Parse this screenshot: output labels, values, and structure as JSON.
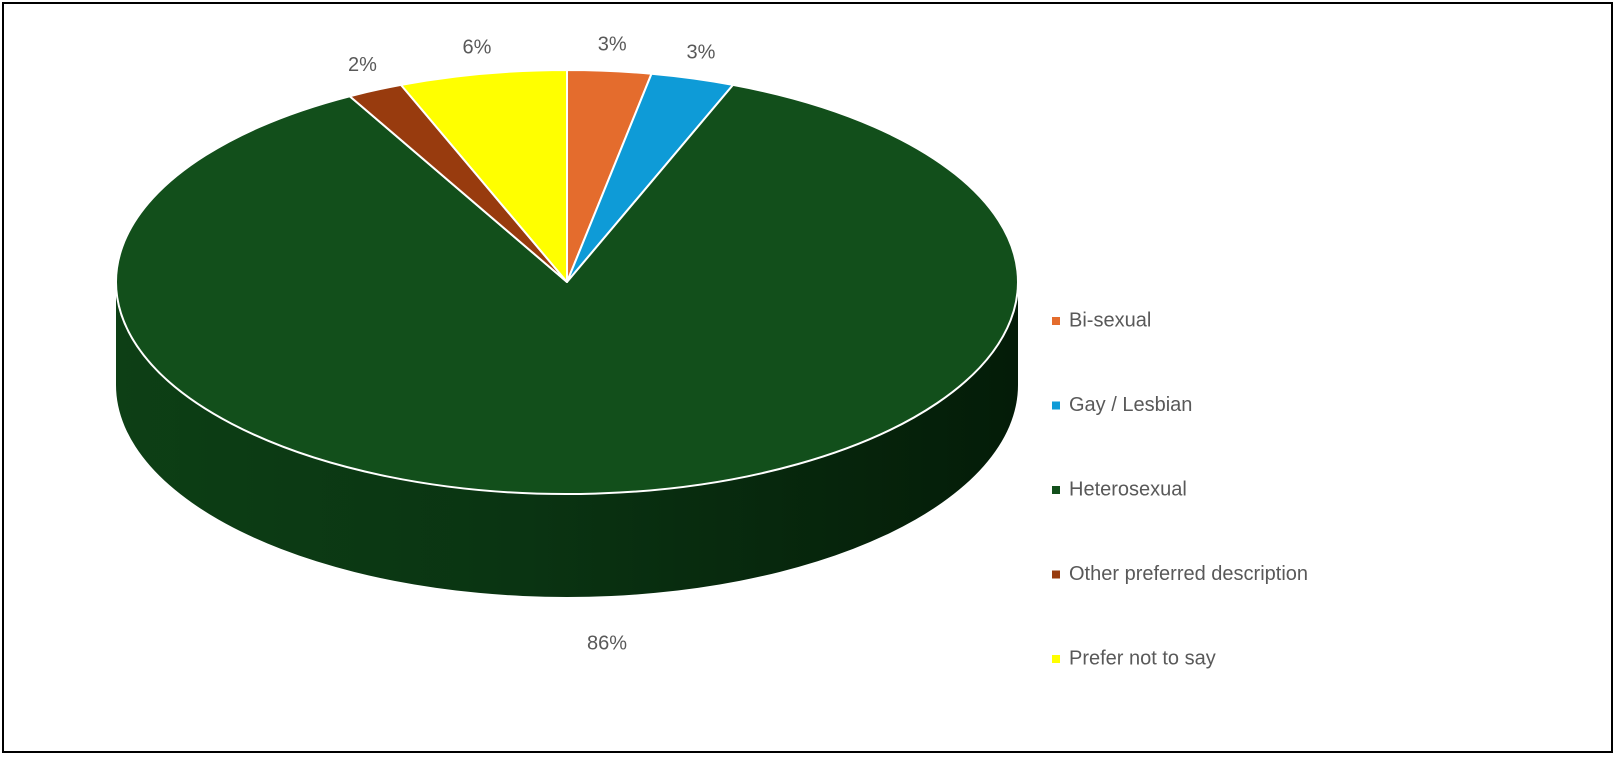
{
  "chart_data": {
    "type": "pie",
    "style": "3d",
    "categories": [
      "Bi-sexual",
      "Gay / Lesbian",
      "Heterosexual",
      "Other preferred description",
      "Prefer not to say"
    ],
    "values": [
      3,
      3,
      86,
      2,
      6
    ],
    "data_labels": [
      "3%",
      "3%",
      "86%",
      "2%",
      "6%"
    ],
    "colors": [
      "#E46C2D",
      "#0E9BD7",
      "#124F1B",
      "#983B0E",
      "#FFFF00"
    ],
    "legend_position": "right"
  }
}
